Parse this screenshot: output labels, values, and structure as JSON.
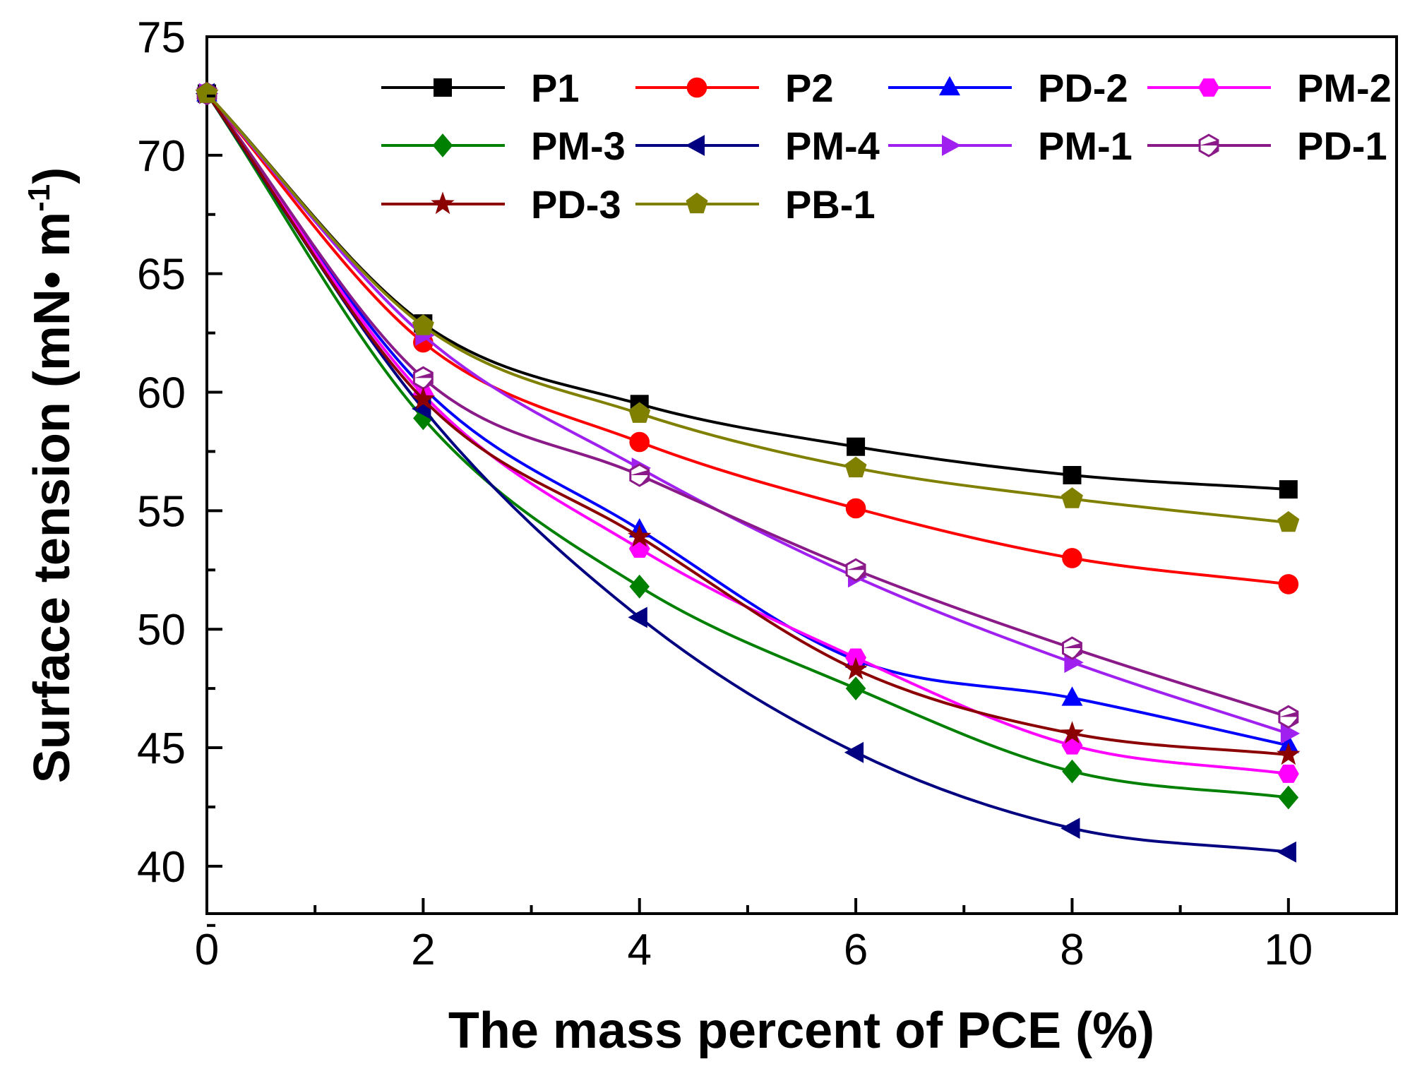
{
  "chart_data": {
    "type": "line",
    "title": "",
    "xlabel": "The mass percent of PCE (%)",
    "ylabel_main": "Surface tension (mN• m",
    "ylabel_sup": "-1",
    "ylabel_close": ")",
    "xlim": [
      0,
      11
    ],
    "ylim": [
      38,
      75
    ],
    "x_ticks": [
      0,
      2,
      4,
      6,
      8,
      10
    ],
    "x_tick_labels": [
      "0",
      "2",
      "4",
      "6",
      "8",
      "10"
    ],
    "y_ticks": [
      40,
      45,
      50,
      55,
      60,
      65,
      70,
      75
    ],
    "y_tick_labels": [
      "40",
      "45",
      "50",
      "55",
      "60",
      "65",
      "70",
      "75"
    ],
    "legend_position": "top-right",
    "x": [
      0,
      2,
      4,
      6,
      8,
      10
    ],
    "series": [
      {
        "name": "P1",
        "color": "#000000",
        "marker": "square",
        "values": [
          72.6,
          62.9,
          59.5,
          57.7,
          56.5,
          55.9
        ]
      },
      {
        "name": "P2",
        "color": "#ff0000",
        "marker": "circle",
        "values": [
          72.6,
          62.1,
          57.9,
          55.1,
          53.0,
          51.9
        ]
      },
      {
        "name": "PD-2",
        "color": "#0000ff",
        "marker": "triangle-up",
        "values": [
          72.6,
          60.2,
          54.2,
          48.7,
          47.1,
          45.1
        ]
      },
      {
        "name": "PM-2",
        "color": "#ff00ff",
        "marker": "hexagon",
        "values": [
          72.6,
          59.9,
          53.4,
          48.8,
          45.1,
          43.9
        ]
      },
      {
        "name": "PM-3",
        "color": "#008000",
        "marker": "diamond",
        "values": [
          72.6,
          58.9,
          51.8,
          47.5,
          44.0,
          42.9
        ]
      },
      {
        "name": "PM-4",
        "color": "#000080",
        "marker": "triangle-left",
        "values": [
          72.6,
          59.3,
          50.5,
          44.8,
          41.6,
          40.6
        ]
      },
      {
        "name": "PM-1",
        "color": "#a020f0",
        "marker": "triangle-right",
        "values": [
          72.6,
          62.4,
          56.8,
          52.2,
          48.6,
          45.6
        ]
      },
      {
        "name": "PD-1",
        "color": "#8b1a89",
        "marker": "hexagon-half",
        "values": [
          72.6,
          60.6,
          56.5,
          52.5,
          49.2,
          46.3
        ]
      },
      {
        "name": "PD-3",
        "color": "#8b0000",
        "marker": "star",
        "values": [
          72.6,
          59.7,
          53.9,
          48.3,
          45.6,
          44.7
        ]
      },
      {
        "name": "PB-1",
        "color": "#808000",
        "marker": "pentagon",
        "values": [
          72.6,
          62.8,
          59.1,
          56.8,
          55.5,
          54.5
        ]
      }
    ]
  }
}
